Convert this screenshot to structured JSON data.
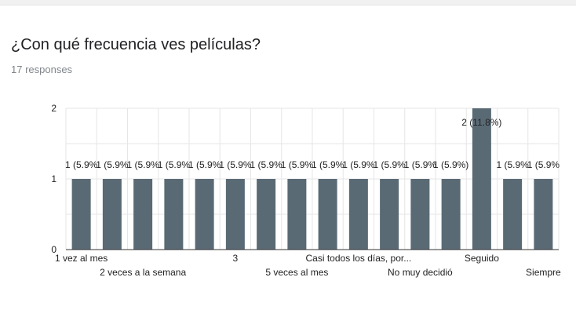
{
  "question": {
    "title": "¿Con qué frecuencia ves películas?",
    "responses": "17 responses"
  },
  "colors": {
    "bar": "#5a6a75",
    "grid": "#e6e6e6",
    "axis": "#333333",
    "text": "#222222"
  },
  "chart_data": {
    "type": "bar",
    "categories": [
      "1 vez al mes",
      "",
      "2 veces a la semana",
      "",
      "",
      "3",
      "",
      "5 veces al mes",
      "",
      "Casi todos los días, por...",
      "",
      "No muy decidió",
      "",
      "Seguido",
      "",
      "Siempre"
    ],
    "values": [
      1,
      1,
      1,
      1,
      1,
      1,
      1,
      1,
      1,
      1,
      1,
      1,
      1,
      2,
      1,
      1
    ],
    "data_labels": [
      "1 (5.9%",
      "1 (5.9%",
      "1 (5.9%",
      "1 (5.9%",
      "1 (5.9%",
      "1 (5.9%",
      "1 (5.9%",
      "1 (5.9%",
      "1 (5.9%",
      "1 (5.9%",
      "1 (5.9%",
      "1 (5.9%",
      "1 (5.9%)",
      "2 (11.8%)",
      "1 (5.9%",
      "1 (5.9%"
    ],
    "yticks": [
      "0",
      "1",
      "2"
    ],
    "ylim": [
      0,
      2
    ],
    "grid": true,
    "legend": "none"
  }
}
